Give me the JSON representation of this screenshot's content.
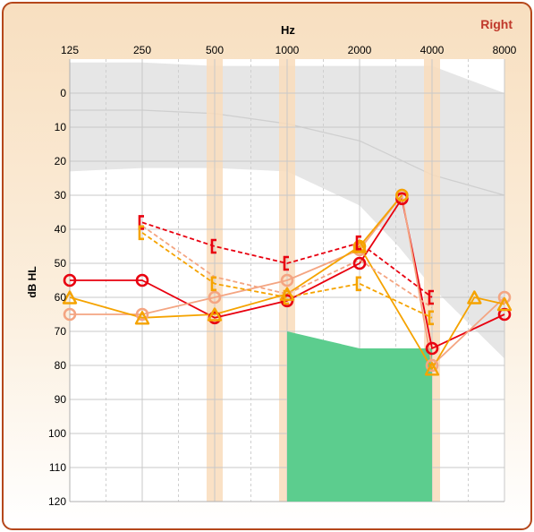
{
  "ear_label": "Right",
  "chart_data": {
    "type": "line",
    "xlabel": "Hz",
    "ylabel": "dB HL",
    "x_scale": "log2",
    "x_ticks": [
      125,
      250,
      500,
      1000,
      2000,
      4000,
      8000
    ],
    "x_tick_labels": [
      "125",
      "250",
      "500",
      "1000",
      "2000",
      "4000",
      "8000"
    ],
    "ylim": [
      -10,
      120
    ],
    "y_ticks": [
      0,
      10,
      20,
      30,
      40,
      50,
      60,
      70,
      80,
      90,
      100,
      110,
      120
    ],
    "y_tick_labels": [
      "0",
      "10",
      "20",
      "30",
      "40",
      "50",
      "60",
      "70",
      "80",
      "90",
      "100",
      "110",
      "120"
    ],
    "y_inverted": true,
    "grid": true,
    "highlight_bands_hz": [
      500,
      1000,
      4000
    ],
    "normal_range_top": [
      [
        125,
        -9
      ],
      [
        250,
        -9
      ],
      [
        500,
        -8
      ],
      [
        1000,
        -8
      ],
      [
        2000,
        -8
      ],
      [
        4000,
        -8
      ],
      [
        8000,
        0
      ]
    ],
    "normal_range_bottom": [
      [
        125,
        23
      ],
      [
        250,
        22
      ],
      [
        500,
        22
      ],
      [
        1000,
        23
      ],
      [
        2000,
        33
      ],
      [
        2900,
        45
      ],
      [
        4000,
        57
      ],
      [
        8000,
        78
      ]
    ],
    "normal_range_midline": [
      [
        125,
        5
      ],
      [
        250,
        5
      ],
      [
        500,
        6
      ],
      [
        1000,
        9
      ],
      [
        2000,
        14
      ],
      [
        4000,
        24
      ],
      [
        8000,
        30
      ]
    ],
    "masking_region": [
      [
        1000,
        70
      ],
      [
        2000,
        75
      ],
      [
        4000,
        75
      ],
      [
        4000,
        120
      ],
      [
        1000,
        120
      ]
    ],
    "colors": {
      "normal_range": "#e6e6e6",
      "midline": "#cfcfcf",
      "masking_region": "#5ccd8e",
      "band": "#f9dcbb",
      "red": "#e8000f",
      "orange": "#f5a300",
      "salmon": "#f4a582"
    },
    "series": [
      {
        "style": "solid",
        "color": "red",
        "marker": "circle",
        "points": [
          [
            125,
            55
          ],
          [
            250,
            55
          ],
          [
            500,
            66
          ],
          [
            1000,
            61
          ],
          [
            2000,
            50
          ],
          [
            3000,
            31
          ],
          [
            4000,
            75
          ],
          [
            8000,
            65
          ]
        ]
      },
      {
        "style": "solid",
        "color": "salmon",
        "marker": "circle",
        "points": [
          [
            125,
            65
          ],
          [
            250,
            65
          ],
          [
            500,
            60
          ],
          [
            1000,
            55
          ],
          [
            2000,
            46
          ],
          [
            3000,
            30
          ],
          [
            4000,
            80
          ],
          [
            8000,
            60
          ]
        ]
      },
      {
        "style": "solid",
        "color": "orange",
        "marker": "circle",
        "points": [
          [
            2000,
            45
          ],
          [
            3000,
            30
          ]
        ]
      },
      {
        "style": "solid",
        "color": "orange",
        "marker": "triangle",
        "points": [
          [
            125,
            60
          ],
          [
            250,
            66
          ],
          [
            500,
            65
          ],
          [
            1000,
            59
          ],
          [
            2000,
            45
          ],
          [
            4000,
            81
          ],
          [
            6000,
            60
          ],
          [
            8000,
            62
          ]
        ]
      },
      {
        "style": "dashed",
        "color": "red",
        "marker": "bracket",
        "points": [
          [
            250,
            38
          ],
          [
            500,
            45
          ],
          [
            1000,
            50
          ],
          [
            2000,
            44
          ],
          [
            4000,
            60
          ]
        ]
      },
      {
        "style": "dashed",
        "color": "salmon",
        "marker": "none",
        "points": [
          [
            250,
            39
          ],
          [
            500,
            54
          ],
          [
            1000,
            59
          ],
          [
            2000,
            49
          ],
          [
            4000,
            63
          ]
        ]
      },
      {
        "style": "dashed",
        "color": "orange",
        "marker": "bracket",
        "points": [
          [
            250,
            41
          ],
          [
            500,
            56
          ],
          [
            1000,
            60
          ],
          [
            2000,
            56
          ],
          [
            4000,
            66
          ]
        ]
      }
    ]
  }
}
